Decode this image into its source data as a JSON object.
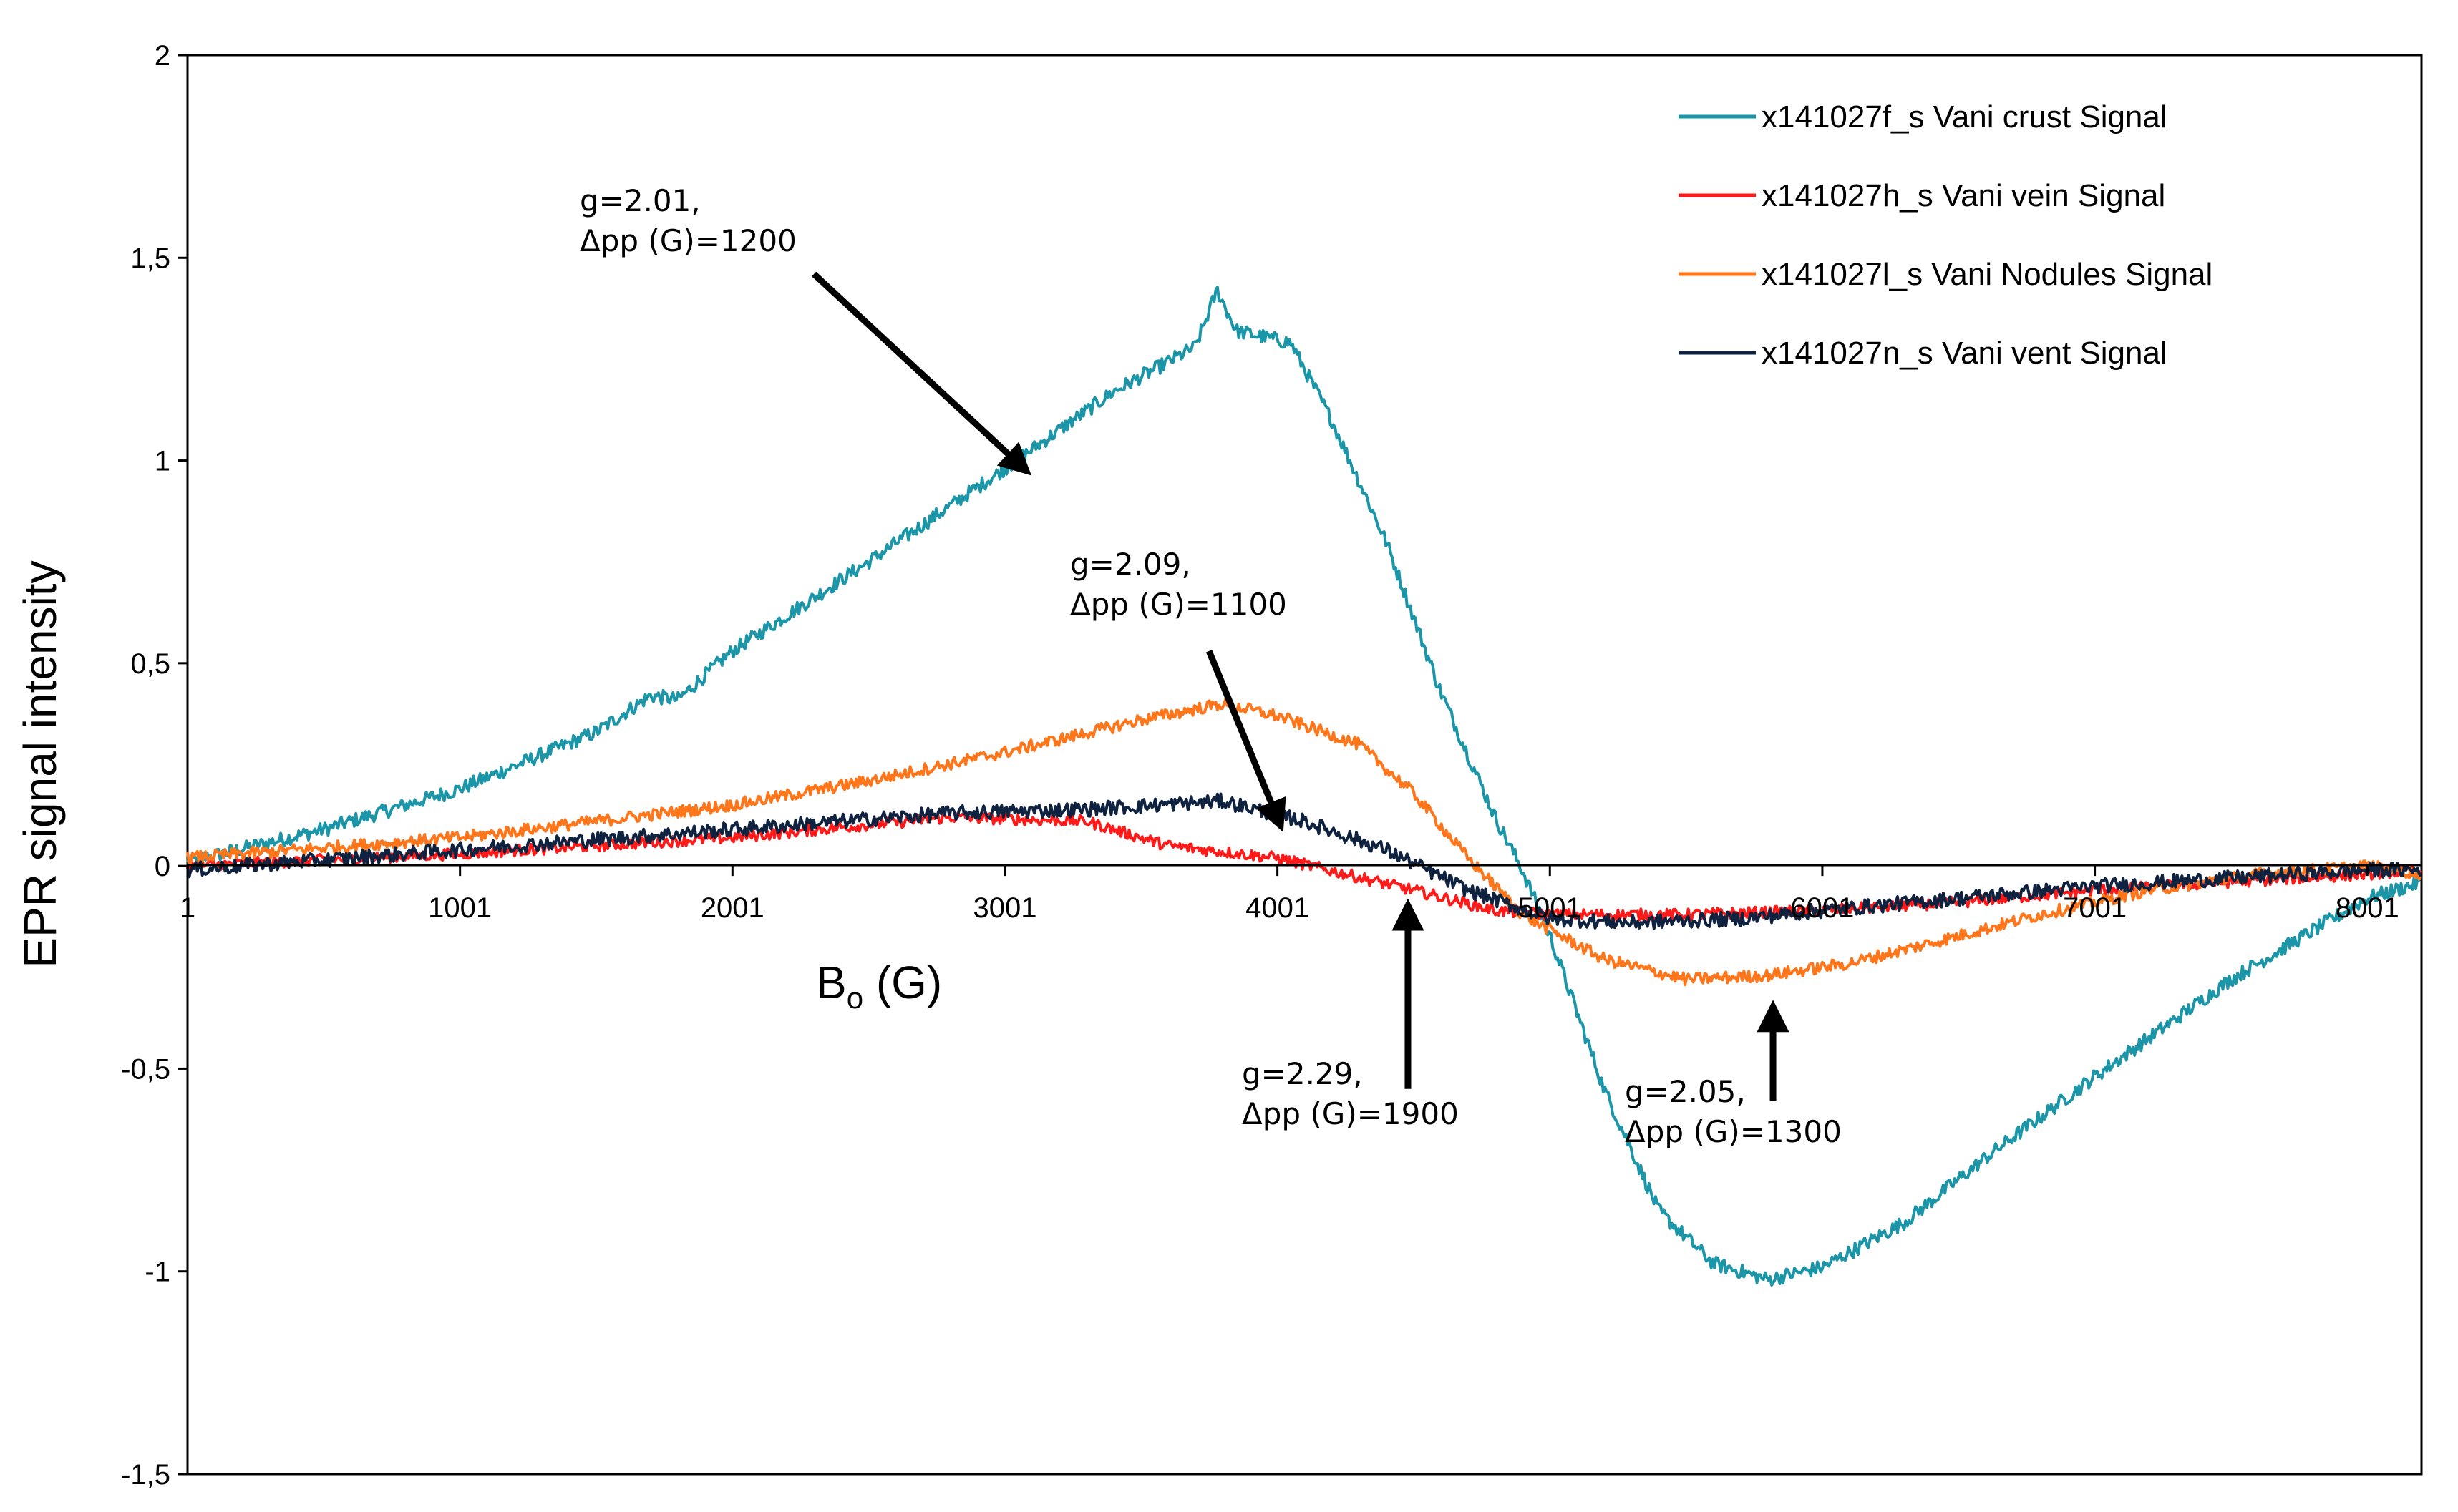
{
  "chart_data": {
    "type": "line",
    "title": "",
    "xlabel": {
      "main": "B",
      "sub": "o",
      "unit": " (G)"
    },
    "ylabel": "EPR signal intensity",
    "xlim": [
      1,
      8200
    ],
    "ylim": [
      -1.5,
      2
    ],
    "x_ticks": [
      {
        "value": 1,
        "label": "1"
      },
      {
        "value": 1001,
        "label": "1001"
      },
      {
        "value": 2001,
        "label": "2001"
      },
      {
        "value": 3001,
        "label": "3001"
      },
      {
        "value": 4001,
        "label": "4001"
      },
      {
        "value": 5001,
        "label": "5001"
      },
      {
        "value": 6001,
        "label": "6001"
      },
      {
        "value": 7001,
        "label": "7001"
      },
      {
        "value": 8001,
        "label": "8001"
      }
    ],
    "y_ticks": [
      {
        "value": 2,
        "label": "2"
      },
      {
        "value": 1.5,
        "label": "1,5"
      },
      {
        "value": 1,
        "label": "1"
      },
      {
        "value": 0.5,
        "label": "0,5"
      },
      {
        "value": 0,
        "label": "0"
      },
      {
        "value": -0.5,
        "label": "-0,5"
      },
      {
        "value": -1,
        "label": "-1"
      },
      {
        "value": -1.5,
        "label": "-1,5"
      }
    ],
    "grid": false,
    "legend_position": "top-right",
    "series": [
      {
        "name": "x141027f_s Vani crust Signal",
        "color": "#1a96a8",
        "noise": 0.018,
        "x": [
          1,
          500,
          1000,
          1500,
          1700,
          1800,
          2000,
          2500,
          3000,
          3400,
          3700,
          3780,
          3850,
          4050,
          4200,
          4400,
          4600,
          4800,
          4900,
          5000,
          5200,
          5400,
          5600,
          5800,
          6000,
          6300,
          6600,
          7000,
          7500,
          8000,
          8200
        ],
        "y": [
          0.01,
          0.09,
          0.19,
          0.33,
          0.42,
          0.41,
          0.53,
          0.75,
          0.98,
          1.17,
          1.28,
          1.42,
          1.32,
          1.29,
          1.1,
          0.8,
          0.43,
          0.12,
          -0.01,
          -0.17,
          -0.55,
          -0.85,
          -0.98,
          -1.02,
          -0.99,
          -0.88,
          -0.72,
          -0.52,
          -0.28,
          -0.08,
          -0.04
        ]
      },
      {
        "name": "x141027h_s Vani vein Signal",
        "color": "#ff1a1a",
        "noise": 0.014,
        "x": [
          1,
          1000,
          2000,
          2800,
          3300,
          3600,
          4000,
          4500,
          4800,
          5000,
          5500,
          6000,
          6500,
          7000,
          7500,
          8000,
          8200
        ],
        "y": [
          0.0,
          0.03,
          0.07,
          0.12,
          0.11,
          0.05,
          0.02,
          -0.06,
          -0.11,
          -0.12,
          -0.12,
          -0.11,
          -0.09,
          -0.06,
          -0.04,
          -0.02,
          -0.01
        ]
      },
      {
        "name": "x141027l_s Vani Nodules Signal",
        "color": "#ff7519",
        "noise": 0.015,
        "x": [
          1,
          1000,
          2000,
          2500,
          3000,
          3500,
          3800,
          4000,
          4300,
          4500,
          4700,
          4900,
          5200,
          5500,
          5800,
          6100,
          6400,
          6800,
          7200,
          7600,
          8000,
          8200
        ],
        "y": [
          0.02,
          0.07,
          0.15,
          0.21,
          0.28,
          0.36,
          0.4,
          0.37,
          0.3,
          0.18,
          0.02,
          -0.12,
          -0.23,
          -0.28,
          -0.27,
          -0.24,
          -0.19,
          -0.12,
          -0.06,
          -0.02,
          0.0,
          -0.02
        ]
      },
      {
        "name": "x141027n_s Vani vent Signal",
        "color": "#0f2340",
        "noise": 0.018,
        "x": [
          1,
          1000,
          2000,
          2800,
          3300,
          3800,
          4100,
          4400,
          4700,
          5000,
          5300,
          5700,
          6000,
          6500,
          7000,
          7500,
          8000,
          8200
        ],
        "y": [
          -0.01,
          0.04,
          0.09,
          0.13,
          0.14,
          0.16,
          0.11,
          0.04,
          -0.06,
          -0.13,
          -0.14,
          -0.13,
          -0.11,
          -0.08,
          -0.05,
          -0.03,
          -0.01,
          -0.01
        ]
      }
    ],
    "annotations": [
      {
        "lines": [
          "g=2.01,",
          "Δpp (G)=1200"
        ],
        "arrow_from": [
          2300,
          1.46
        ],
        "arrow_to": [
          3055,
          0.99
        ]
      },
      {
        "lines": [
          "g=2.09,",
          "Δpp (G)=1100"
        ],
        "arrow_from": [
          3750,
          0.53
        ],
        "arrow_to": [
          4000,
          0.12
        ]
      },
      {
        "lines": [
          "g=2.29,",
          "Δpp (G)=1900"
        ],
        "arrow_from": [
          4480,
          -0.55
        ],
        "arrow_to": [
          4480,
          -0.12
        ]
      },
      {
        "lines": [
          "g=2.05,",
          "Δpp (G)=1300"
        ],
        "arrow_from": [
          5820,
          -0.58
        ],
        "arrow_to": [
          5820,
          -0.37
        ]
      }
    ]
  }
}
